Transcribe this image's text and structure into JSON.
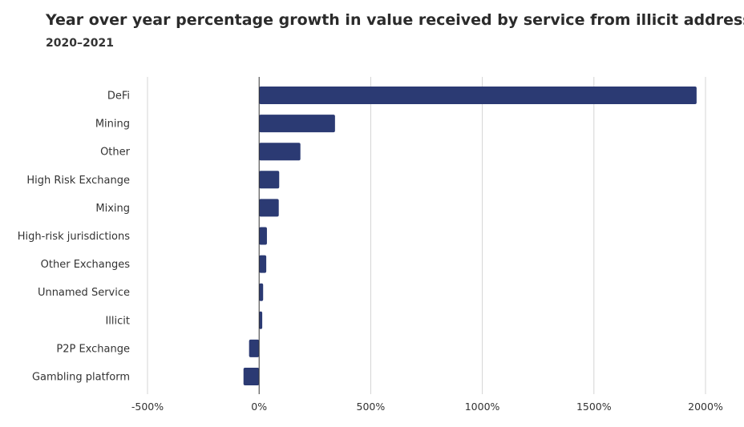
{
  "chart_data": {
    "type": "bar",
    "orientation": "horizontal",
    "title": "Year over year percentage growth in value received by service from illicit addresses",
    "subtitle": "2020–2021",
    "categories": [
      "DeFi",
      "Mining",
      "Other",
      "High Risk Exchange",
      "Mixing",
      "High-risk jurisdictions",
      "Other Exchanges",
      "Unnamed Service",
      "Illicit",
      "P2P Exchange",
      "Gambling platform"
    ],
    "values": [
      1960,
      340,
      185,
      90,
      88,
      35,
      32,
      18,
      14,
      -45,
      -70
    ],
    "unit": "%",
    "xlim": [
      -500,
      2000
    ],
    "xticks": [
      -500,
      0,
      500,
      1000,
      1500,
      2000
    ],
    "xtick_labels": [
      "-500%",
      "0%",
      "500%",
      "1000%",
      "1500%",
      "2000%"
    ],
    "grid": true,
    "bar_color": "#2b3a73"
  }
}
